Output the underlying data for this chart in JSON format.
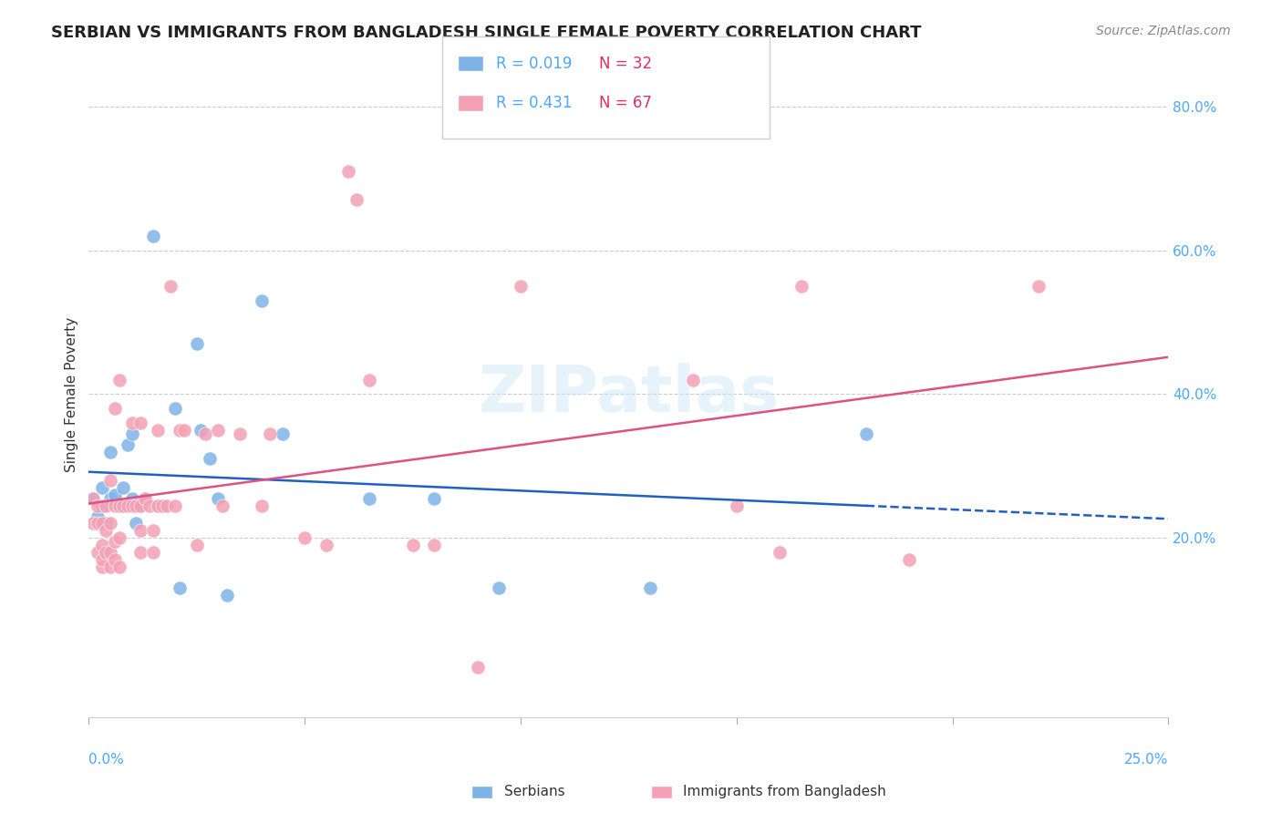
{
  "title": "SERBIAN VS IMMIGRANTS FROM BANGLADESH SINGLE FEMALE POVERTY CORRELATION CHART",
  "source": "Source: ZipAtlas.com",
  "ylabel": "Single Female Poverty",
  "xlim": [
    0.0,
    0.25
  ],
  "ylim": [
    -0.05,
    0.85
  ],
  "serbian_color": "#7eb3e8",
  "bangladesh_color": "#f4a0b5",
  "serbian_line_color": "#2060c0",
  "bangladesh_line_color": "#e05080",
  "watermark": "ZIPatlas",
  "serbian_data": [
    [
      0.001,
      0.255
    ],
    [
      0.002,
      0.23
    ],
    [
      0.003,
      0.27
    ],
    [
      0.003,
      0.245
    ],
    [
      0.004,
      0.22
    ],
    [
      0.005,
      0.32
    ],
    [
      0.005,
      0.255
    ],
    [
      0.006,
      0.26
    ],
    [
      0.007,
      0.245
    ],
    [
      0.008,
      0.27
    ],
    [
      0.009,
      0.33
    ],
    [
      0.01,
      0.345
    ],
    [
      0.01,
      0.255
    ],
    [
      0.011,
      0.22
    ],
    [
      0.012,
      0.245
    ],
    [
      0.013,
      0.255
    ],
    [
      0.015,
      0.62
    ],
    [
      0.016,
      0.245
    ],
    [
      0.02,
      0.38
    ],
    [
      0.021,
      0.13
    ],
    [
      0.025,
      0.47
    ],
    [
      0.026,
      0.35
    ],
    [
      0.028,
      0.31
    ],
    [
      0.03,
      0.255
    ],
    [
      0.032,
      0.12
    ],
    [
      0.04,
      0.53
    ],
    [
      0.045,
      0.345
    ],
    [
      0.065,
      0.255
    ],
    [
      0.08,
      0.255
    ],
    [
      0.095,
      0.13
    ],
    [
      0.13,
      0.13
    ],
    [
      0.18,
      0.345
    ]
  ],
  "bangladesh_data": [
    [
      0.001,
      0.22
    ],
    [
      0.001,
      0.255
    ],
    [
      0.002,
      0.18
    ],
    [
      0.002,
      0.22
    ],
    [
      0.002,
      0.245
    ],
    [
      0.003,
      0.16
    ],
    [
      0.003,
      0.17
    ],
    [
      0.003,
      0.19
    ],
    [
      0.003,
      0.22
    ],
    [
      0.004,
      0.18
    ],
    [
      0.004,
      0.21
    ],
    [
      0.004,
      0.245
    ],
    [
      0.005,
      0.16
    ],
    [
      0.005,
      0.18
    ],
    [
      0.005,
      0.22
    ],
    [
      0.005,
      0.28
    ],
    [
      0.006,
      0.17
    ],
    [
      0.006,
      0.195
    ],
    [
      0.006,
      0.245
    ],
    [
      0.006,
      0.38
    ],
    [
      0.007,
      0.16
    ],
    [
      0.007,
      0.2
    ],
    [
      0.007,
      0.245
    ],
    [
      0.007,
      0.42
    ],
    [
      0.008,
      0.245
    ],
    [
      0.009,
      0.245
    ],
    [
      0.01,
      0.245
    ],
    [
      0.01,
      0.36
    ],
    [
      0.011,
      0.245
    ],
    [
      0.012,
      0.18
    ],
    [
      0.012,
      0.21
    ],
    [
      0.012,
      0.245
    ],
    [
      0.012,
      0.36
    ],
    [
      0.013,
      0.255
    ],
    [
      0.014,
      0.245
    ],
    [
      0.015,
      0.18
    ],
    [
      0.015,
      0.21
    ],
    [
      0.016,
      0.245
    ],
    [
      0.016,
      0.35
    ],
    [
      0.017,
      0.245
    ],
    [
      0.018,
      0.245
    ],
    [
      0.019,
      0.55
    ],
    [
      0.02,
      0.245
    ],
    [
      0.021,
      0.35
    ],
    [
      0.022,
      0.35
    ],
    [
      0.025,
      0.19
    ],
    [
      0.027,
      0.345
    ],
    [
      0.03,
      0.35
    ],
    [
      0.031,
      0.245
    ],
    [
      0.035,
      0.345
    ],
    [
      0.04,
      0.245
    ],
    [
      0.042,
      0.345
    ],
    [
      0.05,
      0.2
    ],
    [
      0.055,
      0.19
    ],
    [
      0.06,
      0.71
    ],
    [
      0.062,
      0.67
    ],
    [
      0.065,
      0.42
    ],
    [
      0.075,
      0.19
    ],
    [
      0.08,
      0.19
    ],
    [
      0.09,
      0.02
    ],
    [
      0.1,
      0.55
    ],
    [
      0.14,
      0.42
    ],
    [
      0.15,
      0.245
    ],
    [
      0.16,
      0.18
    ],
    [
      0.165,
      0.55
    ],
    [
      0.19,
      0.17
    ],
    [
      0.22,
      0.55
    ]
  ]
}
